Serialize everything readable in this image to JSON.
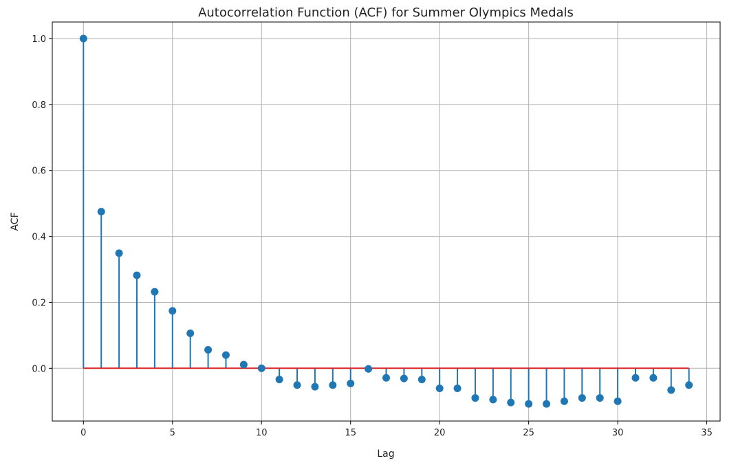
{
  "chart_data": {
    "type": "stem",
    "title": "Autocorrelation Function (ACF) for Summer Olympics Medals",
    "xlabel": "Lag",
    "ylabel": "ACF",
    "xlim": [
      -1.75,
      35.75
    ],
    "ylim": [
      -0.16,
      1.05
    ],
    "xticks": [
      0,
      5,
      10,
      15,
      20,
      25,
      30,
      35
    ],
    "yticks": [
      0.0,
      0.2,
      0.4,
      0.6,
      0.8,
      1.0
    ],
    "grid": true,
    "baseline": 0,
    "series": [
      {
        "x": [
          0,
          1,
          2,
          3,
          4,
          5,
          6,
          7,
          8,
          9,
          10,
          11,
          12,
          13,
          14,
          15,
          16,
          17,
          18,
          19,
          20,
          21,
          22,
          23,
          24,
          25,
          26,
          27,
          28,
          29,
          30,
          31,
          32,
          33,
          34
        ],
        "values": [
          1.0,
          0.475,
          0.349,
          0.282,
          0.232,
          0.174,
          0.106,
          0.056,
          0.04,
          0.011,
          0.0,
          -0.034,
          -0.051,
          -0.056,
          -0.051,
          -0.046,
          -0.002,
          -0.029,
          -0.031,
          -0.034,
          -0.061,
          -0.061,
          -0.09,
          -0.095,
          -0.104,
          -0.108,
          -0.108,
          -0.1,
          -0.09,
          -0.09,
          -0.1,
          -0.029,
          -0.029,
          -0.066,
          -0.051
        ]
      }
    ],
    "colors": {
      "stem": "#1f77b4",
      "marker": "#1f77b4",
      "baseline": "#d62728"
    }
  }
}
